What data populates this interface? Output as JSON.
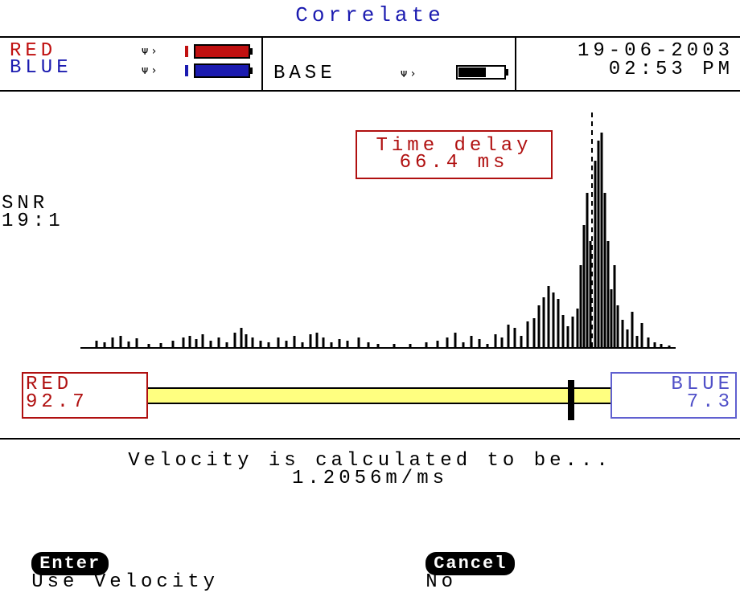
{
  "title": "Correlate",
  "sensors": [
    {
      "label": "RED"
    },
    {
      "label": "BLUE"
    }
  ],
  "base": "BASE",
  "date": "19-06-2003",
  "time": "02:53 PM",
  "snr": {
    "label": "SNR",
    "value": "19:1"
  },
  "time_delay": {
    "label": "Time delay",
    "value": "66.4 ms"
  },
  "position": {
    "red": {
      "label": "RED",
      "value": "92.7"
    },
    "blue": {
      "label": "BLUE",
      "value": "7.3"
    }
  },
  "message": {
    "line1": "Velocity is calculated to be...",
    "line2": "1.2056m/ms"
  },
  "actions": [
    {
      "key": "Enter",
      "label": "Use Velocity"
    },
    {
      "key": "Cancel",
      "label": "No"
    }
  ]
}
